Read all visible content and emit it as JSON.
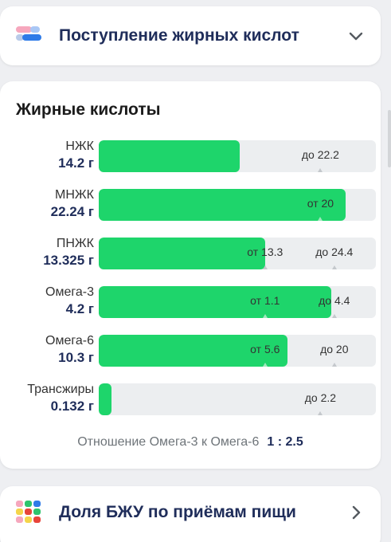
{
  "top_panel": {
    "title": "Поступление жирных кислот"
  },
  "fatty_acids": {
    "title": "Жирные кислоты",
    "rows": [
      {
        "name": "НЖК",
        "value": "14.2 г",
        "fill": 0.51,
        "markers": [
          {
            "label": "до 22.2",
            "pos": 0.8
          }
        ]
      },
      {
        "name": "МНЖК",
        "value": "22.24 г",
        "fill": 0.89,
        "markers": [
          {
            "label": "от 20",
            "pos": 0.8
          }
        ]
      },
      {
        "name": "ПНЖК",
        "value": "13.325 г",
        "fill": 0.6,
        "markers": [
          {
            "label": "от 13.3",
            "pos": 0.6
          },
          {
            "label": "до 24.4",
            "pos": 0.85
          }
        ]
      },
      {
        "name": "Омега-3",
        "value": "4.2 г",
        "fill": 0.84,
        "markers": [
          {
            "label": "от 1.1",
            "pos": 0.6
          },
          {
            "label": "до 4.4",
            "pos": 0.85
          }
        ]
      },
      {
        "name": "Омега-6",
        "value": "10.3 г",
        "fill": 0.68,
        "markers": [
          {
            "label": "от 5.6",
            "pos": 0.6
          },
          {
            "label": "до 20",
            "pos": 0.85
          }
        ]
      },
      {
        "name": "Трансжиры",
        "value": "0.132 г",
        "fill": 0.045,
        "markers": [
          {
            "label": "до 2.2",
            "pos": 0.8
          }
        ]
      }
    ],
    "ratio_label": "Отношение Омега-3 к Омега-6",
    "ratio_value": "1 : 2.5"
  },
  "bottom_panel": {
    "title": "Доля БЖУ по приёмам пищи"
  },
  "colors": {
    "fill": "#1ed56b",
    "track": "#eceef0",
    "accent_text": "#1f2d5a"
  }
}
